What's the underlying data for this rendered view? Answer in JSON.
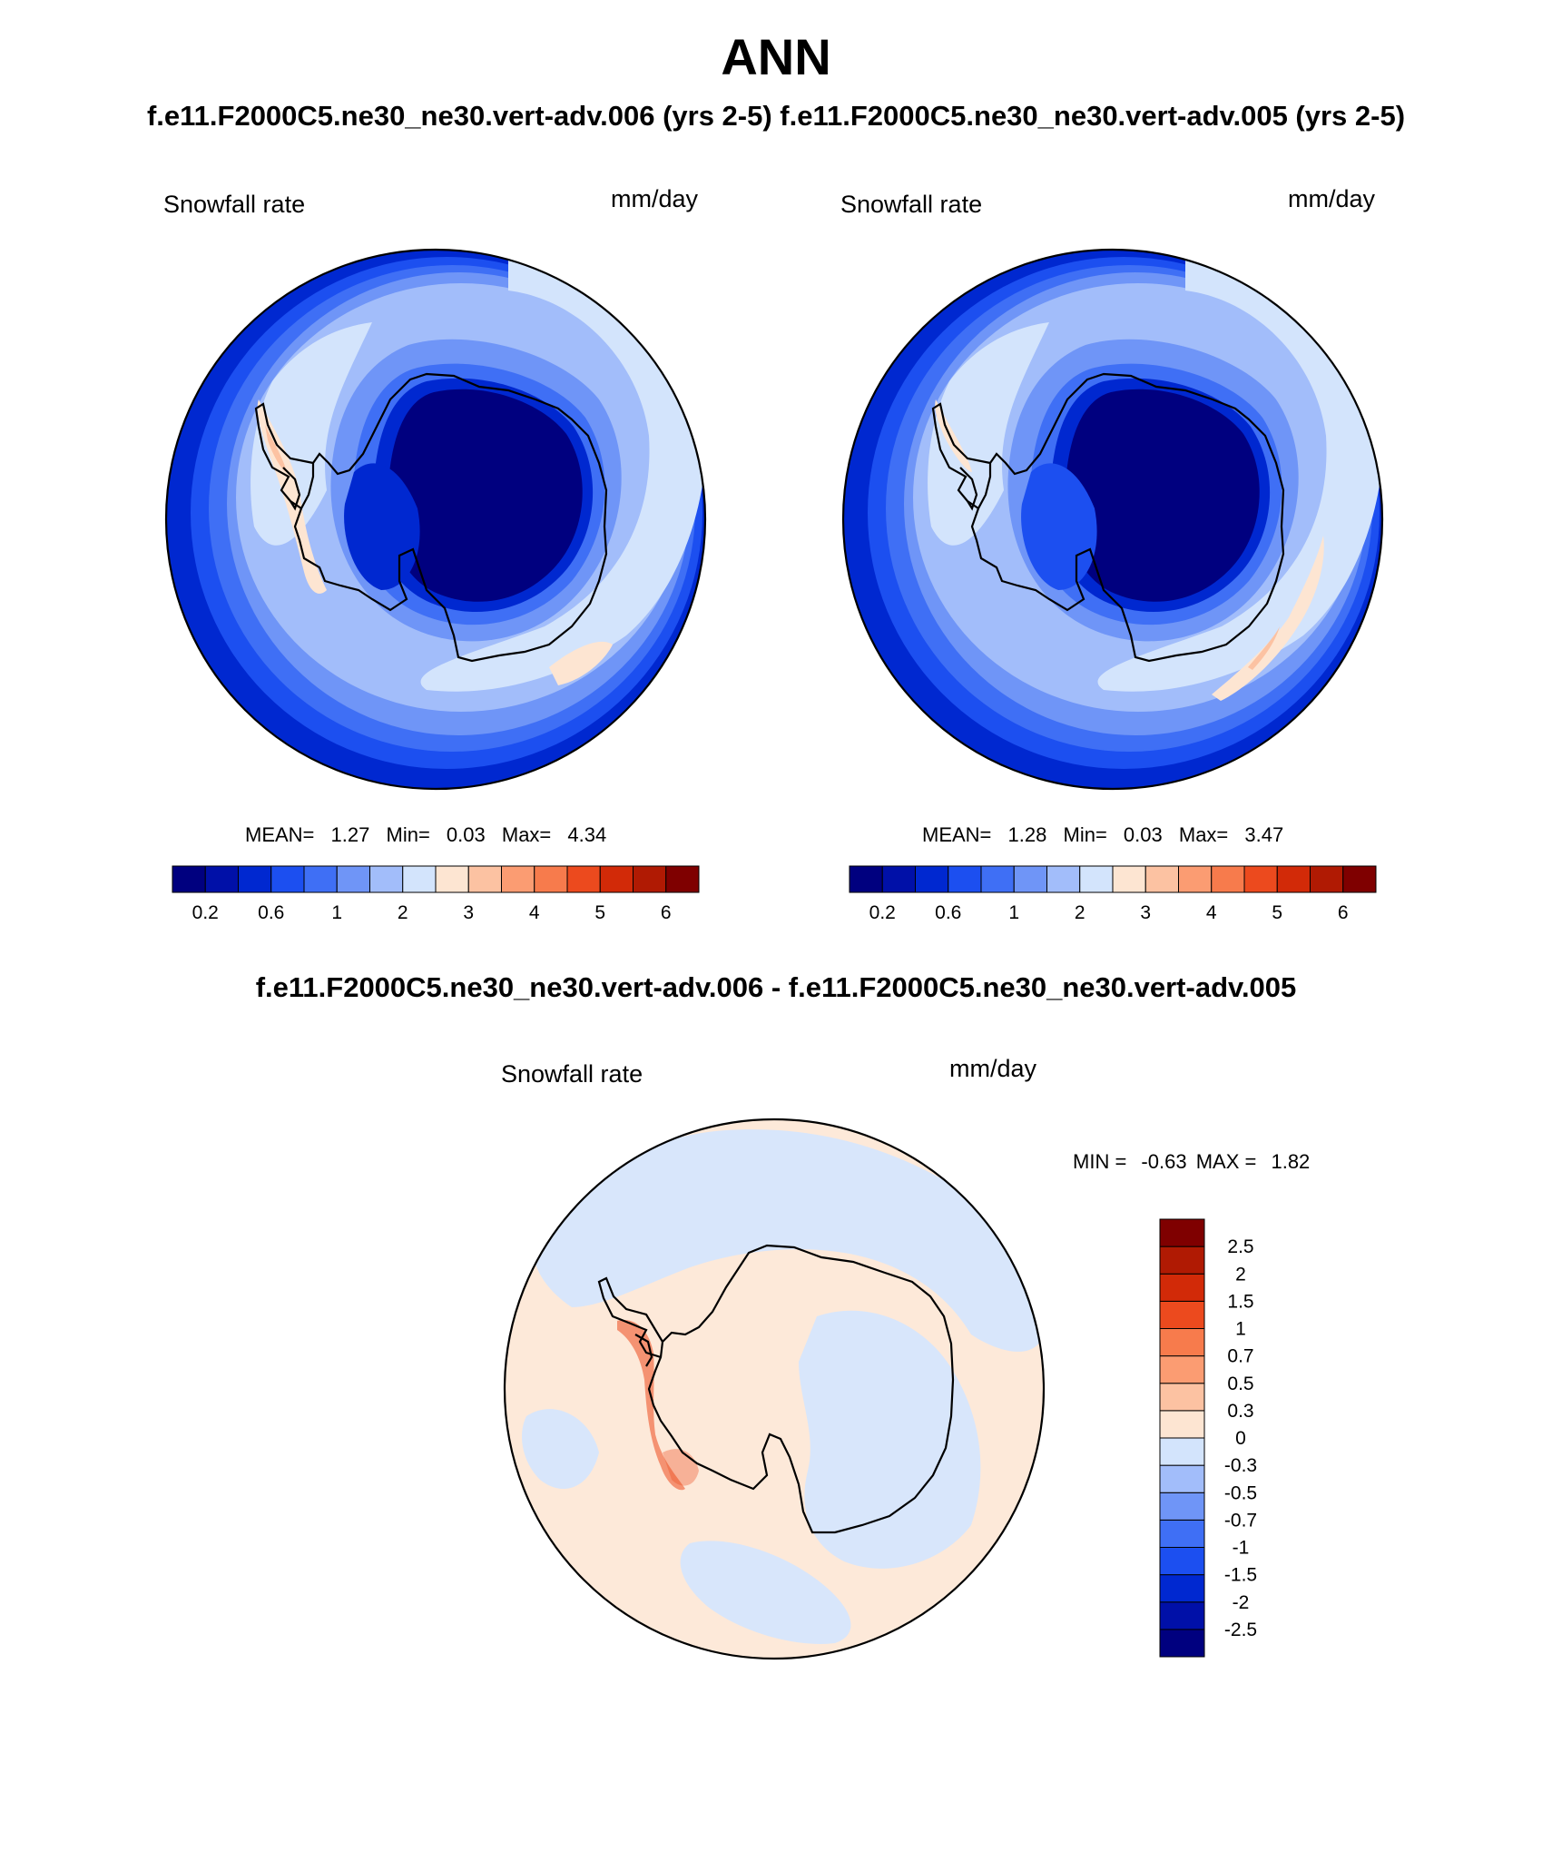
{
  "header": {
    "title": "ANN",
    "subtitle": "f.e11.F2000C5.ne30_ne30.vert-adv.006 (yrs 2-5)  f.e11.F2000C5.ne30_ne30.vert-adv.005 (yrs 2-5)"
  },
  "panel_left": {
    "variable": "Snowfall rate",
    "units": "mm/day",
    "stats": {
      "mean_label": "MEAN=",
      "mean": "1.27",
      "min_label": "Min=",
      "min": "0.03",
      "max_label": "Max=",
      "max": "4.34"
    }
  },
  "panel_right": {
    "variable": "Snowfall rate",
    "units": "mm/day",
    "stats": {
      "mean_label": "MEAN=",
      "mean": "1.28",
      "min_label": "Min=",
      "min": "0.03",
      "max_label": "Max=",
      "max": "3.47"
    }
  },
  "difference": {
    "title": "f.e11.F2000C5.ne30_ne30.vert-adv.006 - f.e11.F2000C5.ne30_ne30.vert-adv.005",
    "variable": "Snowfall rate",
    "units": "mm/day",
    "stats": {
      "min_label": "MIN =",
      "min": "-0.63",
      "max_label": "MAX =",
      "max": "1.82"
    }
  },
  "colorbar_main": {
    "colors": [
      "#00007f",
      "#0010a8",
      "#0028d0",
      "#1c4ff0",
      "#3f6ff5",
      "#6f95f7",
      "#a2bdfa",
      "#d3e4fc",
      "#fde5d2",
      "#fcc2a2",
      "#fb9c72",
      "#f77b4c",
      "#ec4a1e",
      "#d22a08",
      "#b01a03",
      "#7f0000"
    ],
    "ticks": [
      "0.2",
      "0.6",
      "1",
      "2",
      "3",
      "4",
      "5",
      "6"
    ]
  },
  "colorbar_diff": {
    "colors": [
      "#00007f",
      "#0010a8",
      "#0028d0",
      "#1c4ff0",
      "#3f6ff5",
      "#6f95f7",
      "#a2bdfa",
      "#d3e4fc",
      "#fde5d2",
      "#fcc2a2",
      "#fb9c72",
      "#f77b4c",
      "#ec4a1e",
      "#d22a08",
      "#b01a03",
      "#7f0000"
    ],
    "ticks": [
      "-2.5",
      "-2",
      "-1.5",
      "-1",
      "-0.7",
      "-0.5",
      "-0.3",
      "0",
      "0.3",
      "0.5",
      "0.7",
      "1",
      "1.5",
      "2",
      "2.5"
    ]
  },
  "map_colors": {
    "ocean_far": "#d3e4fc",
    "ring1": "#a2bdfa",
    "ring2": "#6f95f7",
    "ring3": "#3f6ff5",
    "ring4": "#1c4ff0",
    "ring5": "#0028d0",
    "interior": "#00007f",
    "peninsula_high": "#fde5d2",
    "peninsula_higher": "#fcc2a2",
    "diff_pos": "#fde9d9",
    "diff_neg": "#d8e6fb",
    "diff_strong": "#ec4a1e"
  }
}
